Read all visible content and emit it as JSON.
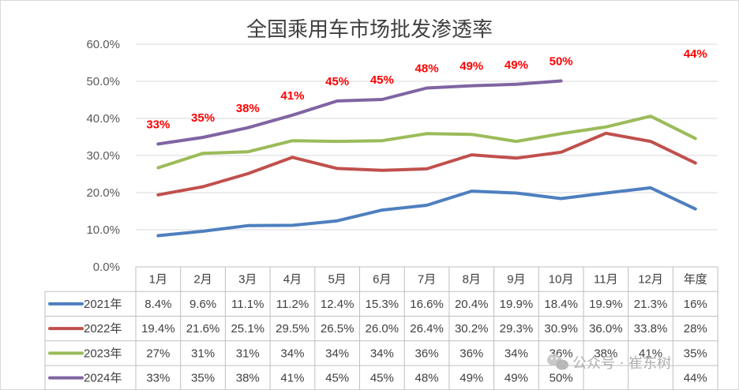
{
  "chart_data": {
    "type": "line",
    "title": "全国乘用车市场批发渗透率",
    "categories": [
      "1月",
      "2月",
      "3月",
      "4月",
      "5月",
      "6月",
      "7月",
      "8月",
      "9月",
      "10月",
      "11月",
      "12月",
      "年度"
    ],
    "yticks": [
      "0.0%",
      "10.0%",
      "20.0%",
      "30.0%",
      "40.0%",
      "50.0%",
      "60.0%"
    ],
    "ylim": [
      0,
      60
    ],
    "series": [
      {
        "name": "2021年",
        "color": "#4e7fbf",
        "values": [
          8.4,
          9.6,
          11.1,
          11.2,
          12.4,
          15.3,
          16.6,
          20.4,
          19.9,
          18.4,
          19.9,
          21.3,
          15.6
        ],
        "table": [
          "8.4%",
          "9.6%",
          "11.1%",
          "11.2%",
          "12.4%",
          "15.3%",
          "16.6%",
          "20.4%",
          "19.9%",
          "18.4%",
          "19.9%",
          "21.3%",
          "16%"
        ]
      },
      {
        "name": "2022年",
        "color": "#c0504d",
        "values": [
          19.4,
          21.6,
          25.1,
          29.5,
          26.5,
          26.0,
          26.4,
          30.2,
          29.3,
          30.9,
          36.0,
          33.8,
          28.0
        ],
        "table": [
          "19.4%",
          "21.6%",
          "25.1%",
          "29.5%",
          "26.5%",
          "26.0%",
          "26.4%",
          "30.2%",
          "29.3%",
          "30.9%",
          "36.0%",
          "33.8%",
          "28%"
        ]
      },
      {
        "name": "2023年",
        "color": "#9bbb59",
        "values": [
          26.7,
          30.6,
          31.0,
          34.0,
          33.8,
          34.0,
          35.9,
          35.7,
          33.8,
          35.9,
          37.7,
          40.6,
          34.6
        ],
        "table": [
          "27%",
          "31%",
          "31%",
          "34%",
          "34%",
          "34%",
          "36%",
          "36%",
          "34%",
          "36%",
          "38%",
          "41%",
          "35%"
        ]
      },
      {
        "name": "2024年",
        "color": "#8064a2",
        "values": [
          33.1,
          34.9,
          37.5,
          40.9,
          44.7,
          45.1,
          48.2,
          48.8,
          49.2,
          50.1,
          null,
          null,
          44
        ],
        "table": [
          "33%",
          "35%",
          "38%",
          "41%",
          "45%",
          "45%",
          "48%",
          "49%",
          "49%",
          "50%",
          "",
          "",
          "44%"
        ],
        "data_labels": [
          "33%",
          "35%",
          "38%",
          "41%",
          "45%",
          "45%",
          "48%",
          "49%",
          "49%",
          "50%",
          "",
          "",
          "44%"
        ]
      }
    ]
  },
  "watermark": {
    "text": "公众号 · 崔东树"
  }
}
